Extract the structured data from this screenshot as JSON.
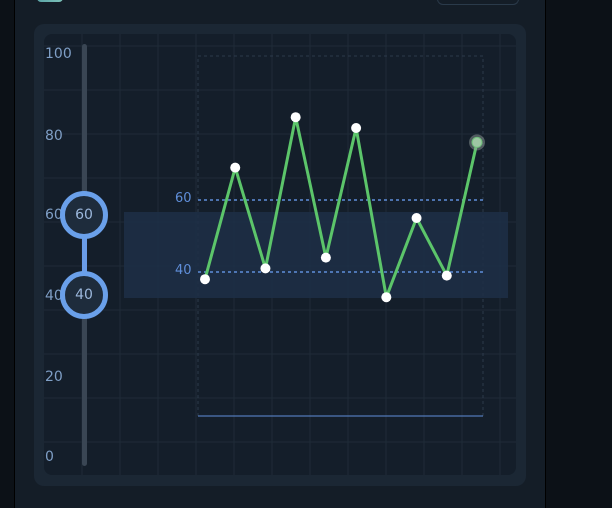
{
  "slider": {
    "min": 0,
    "max": 100,
    "low_value": 40,
    "high_value": 60,
    "low_label": "40",
    "high_label": "60",
    "tick_labels": [
      "100",
      "80",
      "60",
      "40",
      "20",
      "0"
    ]
  },
  "thresholds": {
    "high_label": "60",
    "low_label": "40"
  },
  "chart_data": {
    "type": "line",
    "x": [
      1,
      2,
      3,
      4,
      5,
      6,
      7,
      8,
      9,
      10
    ],
    "series": [
      {
        "values": [
          38,
          69,
          41,
          83,
          44,
          80,
          33,
          55,
          39,
          76
        ]
      }
    ],
    "ylim": [
      0,
      100
    ],
    "thresholds": [
      40,
      60
    ],
    "grid": true,
    "line_color": "#5cc56a",
    "threshold_color": "#5f8ed9",
    "band_color": "#1d2f47"
  },
  "colors": {
    "background": "#141e2a",
    "accent": "#6aa0ea"
  }
}
